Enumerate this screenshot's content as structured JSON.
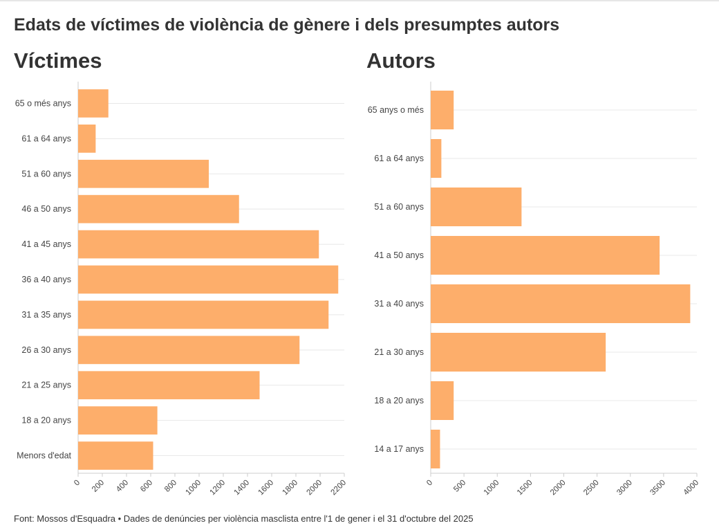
{
  "title": "Edats de víctimes de violència de gènere i dels presumptes autors",
  "footer": "Font: Mossos d'Esquadra • Dades de denúncies per violència masclista entre l'1 de gener i el 31 d'octubre del 2025",
  "colors": {
    "bar": "#fdae6b",
    "grid": "#e8e8e8",
    "axis": "#cccccc",
    "text": "#333333"
  },
  "chart_data": [
    {
      "type": "bar",
      "orientation": "horizontal",
      "title": "Víctimes",
      "categories": [
        "65 o més anys",
        "61 a 64 anys",
        "51 a 60 anys",
        "46 a 50 anys",
        "41 a 45 anys",
        "36 a 40 anys",
        "31 a 35 anys",
        "26 a 30 anys",
        "21 a 25 anys",
        "18 a 20 anys",
        "Menors d'edat"
      ],
      "values": [
        250,
        145,
        1080,
        1330,
        1990,
        2150,
        2070,
        1830,
        1500,
        655,
        620
      ],
      "xlim": [
        0,
        2200
      ],
      "xticks": [
        0,
        200,
        400,
        600,
        800,
        1000,
        1200,
        1400,
        1600,
        1800,
        2000,
        2200
      ],
      "grid": true,
      "xlabel": "",
      "ylabel": ""
    },
    {
      "type": "bar",
      "orientation": "horizontal",
      "title": "Autors",
      "categories": [
        "65 anys o més",
        "61 a 64 anys",
        "51 a 60 anys",
        "41 a 50 anys",
        "31 a 40 anys",
        "21 a 30 anys",
        "18 a 20 anys",
        "14 a 17 anys"
      ],
      "values": [
        345,
        160,
        1365,
        3440,
        3900,
        2630,
        345,
        140
      ],
      "xlim": [
        0,
        4000
      ],
      "xticks": [
        0,
        500,
        1000,
        1500,
        2000,
        2500,
        3000,
        3500,
        4000
      ],
      "grid": true,
      "xlabel": "",
      "ylabel": ""
    }
  ]
}
